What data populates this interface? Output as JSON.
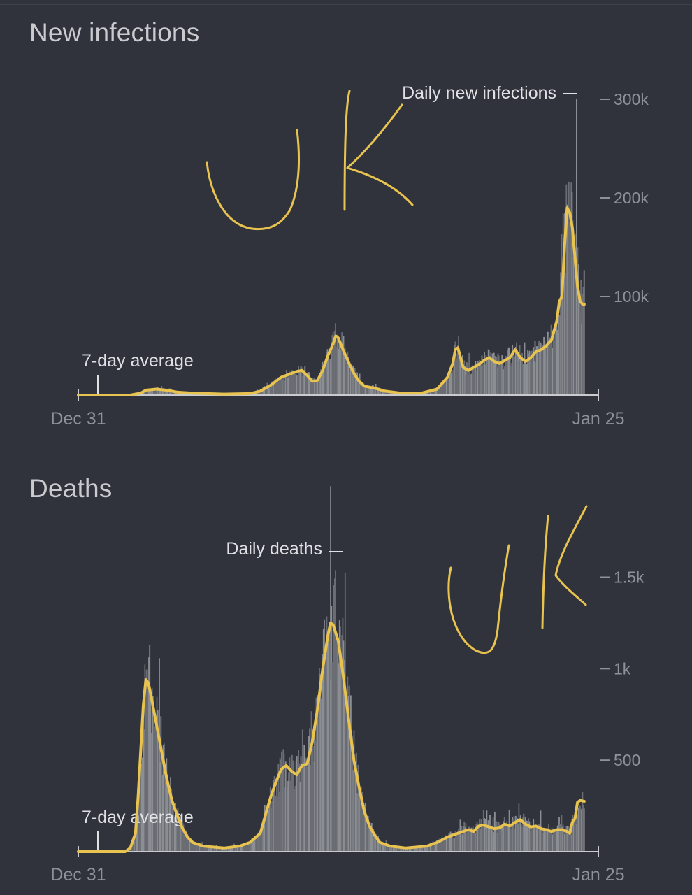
{
  "colors": {
    "background": "#30333b",
    "bars": "#6a6d73",
    "bars_light": "#8b8e93",
    "average_line": "#e8c34f",
    "tick_text": "#8e9197",
    "label_text": "#dfe1e4",
    "title_text": "#c9cbcf"
  },
  "annotation": {
    "handwritten_text": "UK"
  },
  "chart_data": [
    {
      "type": "area",
      "title": "New infections",
      "bar_label": "Daily new infections",
      "average_label": "7-day average",
      "x_start_label": "Dec 31",
      "x_end_label": "Jan 25",
      "x_range": [
        "2019-12-31",
        "2022-01-25"
      ],
      "ylim": [
        0,
        300000
      ],
      "y_ticks": [
        {
          "value": 100000,
          "label": "100k"
        },
        {
          "value": 200000,
          "label": "200k"
        },
        {
          "value": 300000,
          "label": "300k"
        }
      ],
      "grid": false,
      "series": [
        {
          "name": "7-day average",
          "points": [
            [
              0.0,
              0
            ],
            [
              0.1,
              0
            ],
            [
              0.12,
              2000
            ],
            [
              0.13,
              5000
            ],
            [
              0.15,
              6000
            ],
            [
              0.17,
              5000
            ],
            [
              0.19,
              3000
            ],
            [
              0.22,
              2000
            ],
            [
              0.28,
              1000
            ],
            [
              0.33,
              1500
            ],
            [
              0.35,
              4000
            ],
            [
              0.37,
              10000
            ],
            [
              0.39,
              18000
            ],
            [
              0.41,
              22000
            ],
            [
              0.42,
              24000
            ],
            [
              0.43,
              25000
            ],
            [
              0.44,
              20000
            ],
            [
              0.45,
              14000
            ],
            [
              0.46,
              15000
            ],
            [
              0.47,
              25000
            ],
            [
              0.48,
              40000
            ],
            [
              0.49,
              52000
            ],
            [
              0.495,
              60000
            ],
            [
              0.5,
              58000
            ],
            [
              0.51,
              45000
            ],
            [
              0.52,
              33000
            ],
            [
              0.53,
              22000
            ],
            [
              0.54,
              14000
            ],
            [
              0.55,
              9000
            ],
            [
              0.57,
              7000
            ],
            [
              0.59,
              4000
            ],
            [
              0.62,
              2000
            ],
            [
              0.66,
              2000
            ],
            [
              0.69,
              6000
            ],
            [
              0.71,
              18000
            ],
            [
              0.72,
              32000
            ],
            [
              0.725,
              46000
            ],
            [
              0.73,
              48000
            ],
            [
              0.735,
              38000
            ],
            [
              0.74,
              28000
            ],
            [
              0.75,
              25000
            ],
            [
              0.76,
              28000
            ],
            [
              0.77,
              31000
            ],
            [
              0.78,
              35000
            ],
            [
              0.79,
              38000
            ],
            [
              0.8,
              34000
            ],
            [
              0.81,
              32000
            ],
            [
              0.82,
              35000
            ],
            [
              0.83,
              38000
            ],
            [
              0.84,
              46000
            ],
            [
              0.85,
              38000
            ],
            [
              0.86,
              34000
            ],
            [
              0.87,
              38000
            ],
            [
              0.88,
              44000
            ],
            [
              0.89,
              46000
            ],
            [
              0.9,
              50000
            ],
            [
              0.91,
              56000
            ],
            [
              0.92,
              75000
            ],
            [
              0.925,
              95000
            ],
            [
              0.93,
              100000
            ],
            [
              0.935,
              150000
            ],
            [
              0.94,
              190000
            ],
            [
              0.945,
              185000
            ],
            [
              0.95,
              170000
            ],
            [
              0.955,
              140000
            ],
            [
              0.96,
              110000
            ],
            [
              0.965,
              95000
            ],
            [
              0.97,
              92000
            ],
            [
              0.973,
              92000
            ]
          ]
        }
      ]
    },
    {
      "type": "area",
      "title": "Deaths",
      "bar_label": "Daily deaths",
      "average_label": "7-day average",
      "x_start_label": "Dec 31",
      "x_end_label": "Jan 25",
      "x_range": [
        "2019-12-31",
        "2022-01-25"
      ],
      "ylim": [
        0,
        1800
      ],
      "y_ticks": [
        {
          "value": 500,
          "label": "500"
        },
        {
          "value": 1000,
          "label": "1k"
        },
        {
          "value": 1500,
          "label": "1.5k"
        }
      ],
      "grid": false,
      "series": [
        {
          "name": "7-day average",
          "points": [
            [
              0.0,
              0
            ],
            [
              0.09,
              0
            ],
            [
              0.1,
              20
            ],
            [
              0.11,
              100
            ],
            [
              0.115,
              300
            ],
            [
              0.12,
              550
            ],
            [
              0.125,
              800
            ],
            [
              0.13,
              940
            ],
            [
              0.135,
              920
            ],
            [
              0.14,
              850
            ],
            [
              0.15,
              700
            ],
            [
              0.16,
              550
            ],
            [
              0.17,
              400
            ],
            [
              0.18,
              280
            ],
            [
              0.19,
              200
            ],
            [
              0.2,
              130
            ],
            [
              0.21,
              80
            ],
            [
              0.22,
              50
            ],
            [
              0.24,
              30
            ],
            [
              0.28,
              20
            ],
            [
              0.31,
              30
            ],
            [
              0.33,
              50
            ],
            [
              0.35,
              100
            ],
            [
              0.36,
              200
            ],
            [
              0.37,
              300
            ],
            [
              0.38,
              380
            ],
            [
              0.39,
              450
            ],
            [
              0.4,
              470
            ],
            [
              0.41,
              440
            ],
            [
              0.42,
              420
            ],
            [
              0.43,
              470
            ],
            [
              0.44,
              480
            ],
            [
              0.45,
              600
            ],
            [
              0.46,
              780
            ],
            [
              0.47,
              1000
            ],
            [
              0.48,
              1180
            ],
            [
              0.485,
              1250
            ],
            [
              0.49,
              1240
            ],
            [
              0.5,
              1150
            ],
            [
              0.51,
              950
            ],
            [
              0.52,
              720
            ],
            [
              0.53,
              500
            ],
            [
              0.54,
              350
            ],
            [
              0.55,
              220
            ],
            [
              0.56,
              140
            ],
            [
              0.57,
              90
            ],
            [
              0.58,
              50
            ],
            [
              0.6,
              30
            ],
            [
              0.63,
              20
            ],
            [
              0.67,
              30
            ],
            [
              0.69,
              50
            ],
            [
              0.71,
              80
            ],
            [
              0.73,
              100
            ],
            [
              0.75,
              120
            ],
            [
              0.76,
              110
            ],
            [
              0.77,
              140
            ],
            [
              0.78,
              145
            ],
            [
              0.79,
              135
            ],
            [
              0.8,
              125
            ],
            [
              0.81,
              130
            ],
            [
              0.82,
              150
            ],
            [
              0.83,
              140
            ],
            [
              0.84,
              160
            ],
            [
              0.85,
              175
            ],
            [
              0.86,
              150
            ],
            [
              0.87,
              135
            ],
            [
              0.88,
              140
            ],
            [
              0.89,
              125
            ],
            [
              0.9,
              120
            ],
            [
              0.91,
              110
            ],
            [
              0.92,
              120
            ],
            [
              0.93,
              120
            ],
            [
              0.94,
              110
            ],
            [
              0.945,
              100
            ],
            [
              0.95,
              160
            ],
            [
              0.955,
              180
            ],
            [
              0.96,
              270
            ],
            [
              0.965,
              280
            ],
            [
              0.973,
              275
            ]
          ]
        }
      ]
    }
  ]
}
